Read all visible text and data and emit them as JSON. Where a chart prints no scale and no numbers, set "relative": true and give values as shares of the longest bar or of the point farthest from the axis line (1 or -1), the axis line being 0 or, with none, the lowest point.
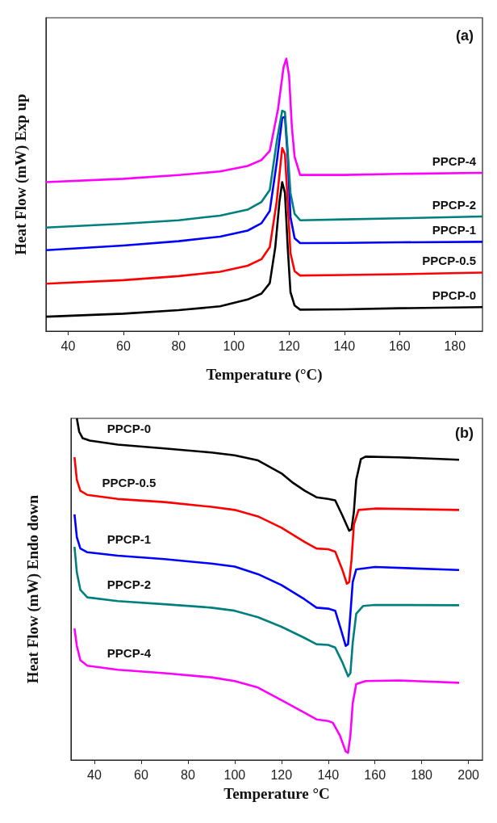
{
  "chart_data": [
    {
      "type": "line",
      "title": "(a)",
      "xlabel": "Temperature (°C)",
      "ylabel": "Heat Flow (mW) Exp up",
      "relative": true,
      "xlim": [
        32,
        190
      ],
      "xticks": [
        40,
        60,
        80,
        100,
        120,
        140,
        160,
        180
      ],
      "tick_labels": "x",
      "series": [
        {
          "name": "PPCP-0",
          "color": "#000000",
          "x": [
            32,
            60,
            80,
            95,
            105,
            110,
            113,
            115,
            116.5,
            117.5,
            118.5,
            119.5,
            120.5,
            122,
            124,
            140,
            160,
            190
          ],
          "values": [
            0.053,
            0.064,
            0.077,
            0.091,
            0.116,
            0.138,
            0.176,
            0.308,
            0.474,
            0.547,
            0.507,
            0.308,
            0.143,
            0.094,
            0.079,
            0.08,
            0.084,
            0.088
          ]
        },
        {
          "name": "PPCP-0.5",
          "color": "#ff0000",
          "x": [
            32,
            60,
            80,
            95,
            105,
            110,
            113,
            115.5,
            117.5,
            118.5,
            119.5,
            120.5,
            122,
            124,
            140,
            160,
            190
          ],
          "values": [
            0.174,
            0.187,
            0.202,
            0.218,
            0.24,
            0.264,
            0.308,
            0.474,
            0.672,
            0.65,
            0.474,
            0.286,
            0.22,
            0.204,
            0.206,
            0.209,
            0.215
          ]
        },
        {
          "name": "PPCP-1",
          "color": "#0000ff",
          "x": [
            32,
            60,
            80,
            95,
            105,
            110,
            113,
            115.5,
            117.5,
            118.5,
            119.5,
            120.5,
            122,
            124,
            140,
            160,
            190
          ],
          "values": [
            0.297,
            0.314,
            0.33,
            0.347,
            0.369,
            0.396,
            0.441,
            0.617,
            0.782,
            0.787,
            0.639,
            0.419,
            0.341,
            0.323,
            0.324,
            0.326,
            0.328
          ]
        },
        {
          "name": "PPCP-2",
          "color": "#007f7f",
          "x": [
            32,
            60,
            80,
            95,
            105,
            110,
            113,
            115.5,
            117.5,
            118.5,
            119.5,
            120.5,
            122,
            124,
            140,
            160,
            190
          ],
          "values": [
            0.38,
            0.394,
            0.407,
            0.424,
            0.446,
            0.474,
            0.518,
            0.694,
            0.809,
            0.804,
            0.661,
            0.507,
            0.43,
            0.407,
            0.41,
            0.414,
            0.421
          ]
        },
        {
          "name": "PPCP-4",
          "color": "#ff00ff",
          "x": [
            32,
            60,
            80,
            95,
            105,
            110,
            113,
            116,
            118,
            119,
            120,
            121,
            122,
            124,
            140,
            160,
            190
          ],
          "values": [
            0.547,
            0.559,
            0.573,
            0.586,
            0.606,
            0.628,
            0.661,
            0.815,
            0.969,
            1,
            0.936,
            0.749,
            0.639,
            0.573,
            0.573,
            0.577,
            0.581
          ]
        }
      ]
    },
    {
      "type": "line",
      "title": "(b)",
      "xlabel": "Temperature °C",
      "ylabel": "Heat Flow (mW) Endo down",
      "relative": true,
      "xlim": [
        30,
        206
      ],
      "xticks": [
        40,
        60,
        80,
        100,
        120,
        140,
        160,
        180,
        200
      ],
      "tick_labels": "x",
      "series": [
        {
          "name": "PPCP-0",
          "color": "#000000",
          "x": [
            32.5,
            33.5,
            35,
            38,
            50,
            70,
            90,
            100,
            110,
            120,
            125,
            130,
            135,
            140,
            143,
            146,
            149,
            150,
            151,
            152,
            154,
            156,
            170,
            196
          ],
          "values": [
            1.0,
            0.961,
            0.942,
            0.935,
            0.923,
            0.912,
            0.9,
            0.892,
            0.877,
            0.839,
            0.811,
            0.788,
            0.769,
            0.764,
            0.76,
            0.717,
            0.671,
            0.675,
            0.727,
            0.82,
            0.881,
            0.888,
            0.886,
            0.879
          ]
        },
        {
          "name": "PPCP-0.5",
          "color": "#ff0000",
          "x": [
            31.5,
            32.5,
            34,
            37,
            50,
            70,
            90,
            100,
            110,
            120,
            130,
            135,
            140,
            143,
            146,
            148,
            149,
            150,
            151,
            153,
            160,
            196
          ],
          "values": [
            0.886,
            0.82,
            0.788,
            0.776,
            0.764,
            0.755,
            0.741,
            0.732,
            0.713,
            0.68,
            0.638,
            0.619,
            0.617,
            0.61,
            0.558,
            0.516,
            0.521,
            0.587,
            0.689,
            0.732,
            0.736,
            0.732
          ]
        },
        {
          "name": "PPCP-1",
          "color": "#0000ff",
          "x": [
            31.5,
            32.5,
            34,
            37,
            50,
            70,
            90,
            100,
            110,
            120,
            130,
            135,
            140,
            143,
            145.5,
            147.5,
            148.5,
            149.5,
            150.5,
            152,
            160,
            196
          ],
          "values": [
            0.719,
            0.652,
            0.619,
            0.608,
            0.598,
            0.588,
            0.575,
            0.566,
            0.544,
            0.512,
            0.47,
            0.446,
            0.443,
            0.437,
            0.381,
            0.334,
            0.339,
            0.427,
            0.521,
            0.558,
            0.565,
            0.556
          ]
        },
        {
          "name": "PPCP-2",
          "color": "#007f7f",
          "x": [
            31.5,
            32.5,
            34,
            37,
            50,
            70,
            90,
            100,
            110,
            120,
            130,
            135,
            140,
            143,
            146,
            148.5,
            149.5,
            150.5,
            152,
            155,
            160,
            196
          ],
          "values": [
            0.624,
            0.549,
            0.498,
            0.476,
            0.465,
            0.456,
            0.446,
            0.437,
            0.418,
            0.39,
            0.357,
            0.339,
            0.337,
            0.329,
            0.287,
            0.245,
            0.254,
            0.343,
            0.428,
            0.451,
            0.454,
            0.453
          ]
        },
        {
          "name": "PPCP-4",
          "color": "#ff00ff",
          "x": [
            31.5,
            32.5,
            34,
            37,
            50,
            70,
            90,
            100,
            110,
            120,
            130,
            135,
            140,
            142,
            145,
            147.5,
            148.5,
            149.5,
            150.5,
            152,
            156,
            170,
            196
          ],
          "values": [
            0.385,
            0.334,
            0.292,
            0.276,
            0.264,
            0.254,
            0.242,
            0.231,
            0.212,
            0.175,
            0.138,
            0.119,
            0.114,
            0.109,
            0.072,
            0.025,
            0.021,
            0.072,
            0.166,
            0.222,
            0.231,
            0.233,
            0.226
          ]
        }
      ]
    }
  ]
}
